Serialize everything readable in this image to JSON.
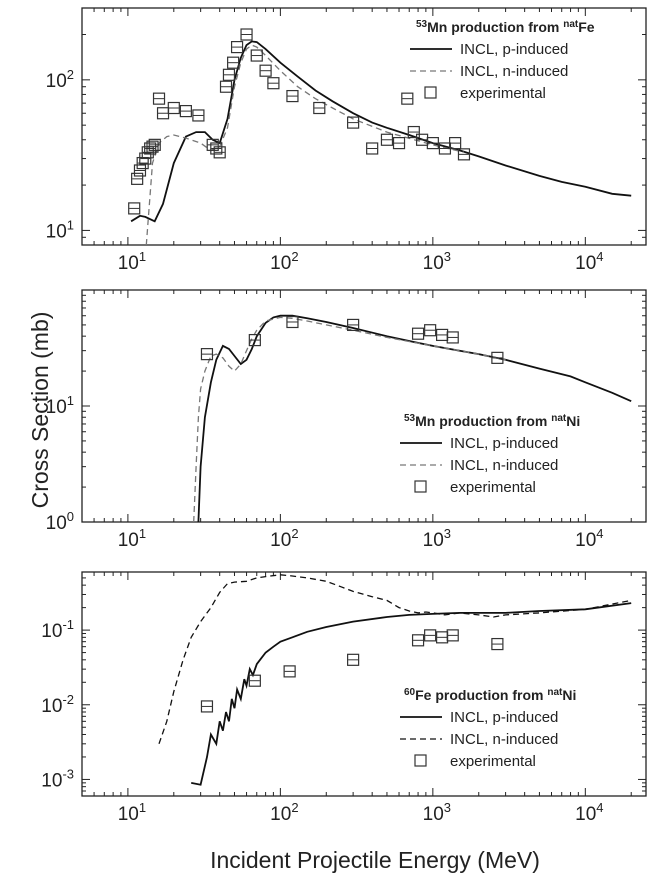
{
  "figure": {
    "ylabel": "Cross Section (mb)",
    "xlabel": "Incident Projectile Energy (MeV)"
  },
  "chart_data": [
    {
      "type": "line",
      "xscale": "log",
      "yscale": "log",
      "xlim": [
        5,
        25000
      ],
      "ylim": [
        8,
        300
      ],
      "xticks": [
        10,
        100,
        1000,
        10000
      ],
      "xtick_labels": [
        {
          "base": "10",
          "exp": "1"
        },
        {
          "base": "10",
          "exp": "2"
        },
        {
          "base": "10",
          "exp": "3"
        },
        {
          "base": "10",
          "exp": "4"
        }
      ],
      "yticks": [
        10,
        100
      ],
      "ytick_labels": [
        {
          "base": "10",
          "exp": "1"
        },
        {
          "base": "10",
          "exp": "2"
        }
      ],
      "legend": {
        "placement": "top-right",
        "title": {
          "sup1": "53",
          "mid": "Mn production from ",
          "sup2": "nat",
          "end": "Fe"
        },
        "entries": [
          "INCL, p-induced",
          "INCL, n-induced",
          "experimental"
        ]
      },
      "series": [
        {
          "name": "INCL, p-induced",
          "style": "solid",
          "color": "#111111",
          "x": [
            10.5,
            12,
            13,
            15,
            17,
            20,
            24,
            28,
            32,
            36,
            40,
            45,
            50,
            55,
            60,
            65,
            70,
            80,
            100,
            130,
            170,
            220,
            300,
            400,
            500,
            700,
            1000,
            1500,
            2000,
            3000,
            5000,
            7000,
            10000,
            15000,
            20000
          ],
          "y": [
            11.5,
            12.5,
            12.3,
            11.5,
            15,
            28,
            42,
            45,
            45,
            40,
            38,
            55,
            100,
            140,
            170,
            180,
            178,
            160,
            130,
            105,
            85,
            72,
            60,
            52,
            48,
            43,
            38,
            34,
            31,
            27,
            23,
            21,
            19.5,
            17.5,
            17
          ]
        },
        {
          "name": "INCL, n-induced",
          "style": "dashed",
          "color": "#777777",
          "x": [
            13.2,
            13.6,
            14.5,
            16,
            18,
            20,
            24,
            30,
            35,
            40,
            45,
            50,
            55,
            60,
            65,
            70,
            80,
            100,
            130,
            170,
            220,
            300,
            500,
            1000,
            1600
          ],
          "y": [
            8,
            12,
            28,
            38,
            42,
            43,
            41,
            38,
            34,
            36,
            48,
            90,
            130,
            160,
            170,
            165,
            145,
            115,
            90,
            75,
            65,
            55,
            45,
            37,
            33
          ]
        }
      ],
      "points": {
        "x": [
          11,
          11.5,
          12,
          12.5,
          13,
          13.5,
          14,
          14.5,
          15,
          16,
          17,
          20,
          24,
          29,
          36,
          38,
          40,
          44,
          46,
          49,
          52,
          60,
          70,
          80,
          90,
          120,
          180,
          300,
          400,
          500,
          600,
          680,
          750,
          850,
          1000,
          1200,
          1400,
          1600
        ],
        "y": [
          14,
          22,
          25,
          28,
          30,
          33,
          35,
          36,
          37,
          75,
          60,
          65,
          62,
          58,
          37,
          35,
          33,
          90,
          108,
          130,
          165,
          200,
          145,
          115,
          95,
          78,
          65,
          52,
          35,
          40,
          38,
          75,
          45,
          40,
          38,
          35,
          38,
          32
        ]
      }
    },
    {
      "type": "line",
      "xscale": "log",
      "yscale": "log",
      "xlim": [
        5,
        25000
      ],
      "ylim": [
        1,
        100
      ],
      "xticks": [
        10,
        100,
        1000,
        10000
      ],
      "xtick_labels": [
        {
          "base": "10",
          "exp": "1"
        },
        {
          "base": "10",
          "exp": "2"
        },
        {
          "base": "10",
          "exp": "3"
        },
        {
          "base": "10",
          "exp": "4"
        }
      ],
      "yticks": [
        1,
        10
      ],
      "ytick_labels": [
        {
          "base": "10",
          "exp": "0"
        },
        {
          "base": "10",
          "exp": "1"
        }
      ],
      "legend": {
        "placement": "bottom-right",
        "title": {
          "sup1": "53",
          "mid": "Mn production from ",
          "sup2": "nat",
          "end": "Ni"
        },
        "entries": [
          "INCL, p-induced",
          "INCL, n-induced",
          "experimental"
        ]
      },
      "series": [
        {
          "name": "INCL, p-induced",
          "style": "solid",
          "color": "#111111",
          "x": [
            29,
            30,
            32,
            35,
            38,
            42,
            46,
            50,
            55,
            60,
            65,
            70,
            80,
            90,
            100,
            120,
            150,
            200,
            300,
            500,
            800,
            1000,
            1500,
            2000,
            3000,
            5000,
            8000,
            10000,
            15000,
            20000
          ],
          "y": [
            1,
            3,
            8,
            16,
            25,
            33,
            31,
            27,
            23,
            25,
            31,
            40,
            52,
            58,
            60,
            60,
            57,
            53,
            47,
            40,
            35,
            33,
            30,
            28,
            25,
            21,
            18,
            16,
            13,
            11
          ]
        },
        {
          "name": "INCL, n-induced",
          "style": "dashed",
          "color": "#777777",
          "x": [
            27,
            28,
            29,
            30,
            32,
            35,
            38,
            42,
            46,
            50,
            55,
            60,
            65,
            70,
            80,
            100,
            120,
            150,
            200,
            300,
            500,
            1000,
            2000,
            3000
          ],
          "y": [
            1,
            3,
            8,
            14,
            20,
            27,
            28,
            26,
            22,
            20,
            23,
            30,
            38,
            45,
            54,
            58,
            57,
            54,
            50,
            45,
            39,
            33,
            28,
            25
          ]
        }
      ],
      "points": {
        "x": [
          33,
          68,
          120,
          300,
          800,
          960,
          1150,
          1350,
          2650
        ],
        "y": [
          28,
          37,
          53,
          50,
          42,
          45,
          41,
          39,
          26
        ]
      }
    },
    {
      "type": "line",
      "xscale": "log",
      "yscale": "log",
      "xlim": [
        5,
        25000
      ],
      "ylim": [
        0.0006,
        0.6
      ],
      "xticks": [
        10,
        100,
        1000,
        10000
      ],
      "xtick_labels": [
        {
          "base": "10",
          "exp": "1"
        },
        {
          "base": "10",
          "exp": "2"
        },
        {
          "base": "10",
          "exp": "3"
        },
        {
          "base": "10",
          "exp": "4"
        }
      ],
      "yticks": [
        0.001,
        0.01,
        0.1
      ],
      "ytick_labels": [
        {
          "base": "10",
          "exp": "-3"
        },
        {
          "base": "10",
          "exp": "-2"
        },
        {
          "base": "10",
          "exp": "-1"
        }
      ],
      "legend": {
        "placement": "bottom-right",
        "title": {
          "sup1": "60",
          "mid": "Fe production from ",
          "sup2": "nat",
          "end": "Ni"
        },
        "entries": [
          "INCL, p-induced",
          "INCL, n-induced",
          "experimental"
        ]
      },
      "series": [
        {
          "name": "INCL, p-induced",
          "style": "solid",
          "color": "#111111",
          "x": [
            26,
            30,
            33,
            35,
            38,
            40,
            42,
            44,
            46,
            48,
            50,
            52,
            55,
            58,
            60,
            63,
            66,
            70,
            75,
            80,
            90,
            100,
            120,
            150,
            200,
            300,
            500,
            700,
            1000,
            1500,
            2000,
            3000,
            5000,
            10000,
            20000
          ],
          "y": [
            0.0009,
            0.00085,
            0.002,
            0.004,
            0.003,
            0.006,
            0.0045,
            0.008,
            0.006,
            0.012,
            0.009,
            0.016,
            0.012,
            0.022,
            0.018,
            0.03,
            0.025,
            0.035,
            0.042,
            0.05,
            0.06,
            0.07,
            0.08,
            0.095,
            0.11,
            0.13,
            0.15,
            0.16,
            0.165,
            0.17,
            0.17,
            0.17,
            0.18,
            0.19,
            0.23
          ]
        },
        {
          "name": "INCL, n-induced",
          "style": "dashed",
          "color": "#111111",
          "x": [
            16,
            18,
            20,
            23,
            26,
            30,
            35,
            40,
            45,
            50,
            60,
            70,
            80,
            100,
            120,
            150,
            200,
            250,
            300,
            400,
            500,
            600,
            700,
            800,
            900,
            1000,
            1200,
            1500,
            2000,
            2500,
            3000,
            5000,
            10000,
            20000
          ],
          "y": [
            0.003,
            0.006,
            0.015,
            0.04,
            0.08,
            0.13,
            0.2,
            0.32,
            0.42,
            0.44,
            0.45,
            0.5,
            0.52,
            0.55,
            0.53,
            0.5,
            0.45,
            0.38,
            0.33,
            0.28,
            0.25,
            0.2,
            0.18,
            0.17,
            0.175,
            0.17,
            0.16,
            0.17,
            0.16,
            0.15,
            0.16,
            0.17,
            0.19,
            0.25
          ]
        }
      ],
      "points": {
        "x": [
          33,
          68,
          115,
          300,
          800,
          960,
          1150,
          1350,
          2650
        ],
        "y": [
          0.0095,
          0.021,
          0.028,
          0.04,
          0.073,
          0.085,
          0.08,
          0.085,
          0.065
        ]
      }
    }
  ]
}
